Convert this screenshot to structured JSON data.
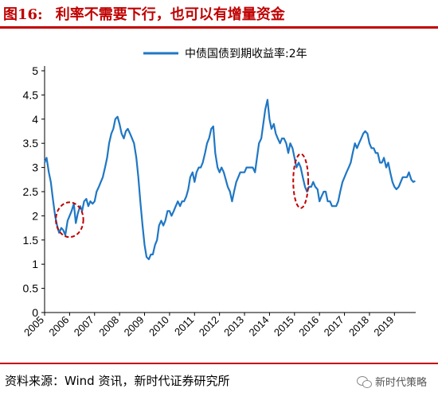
{
  "header": {
    "figure_label": "图16:",
    "title": "利率不需要下行，也可以有增量资金"
  },
  "footer": {
    "source": "资料来源：Wind 资讯，新时代证券研究所",
    "watermark": "新时代策略"
  },
  "icons": {
    "watermark_icon": "wechat-icon"
  },
  "colors": {
    "line": "#1f77c4",
    "highlight": "#c00000",
    "title": "#c00000"
  },
  "chart_data": {
    "type": "line",
    "title": "",
    "xlabel": "",
    "ylabel": "",
    "ylim": [
      0,
      5
    ],
    "yticks": [
      "0",
      "0.5",
      "1",
      "1.5",
      "2",
      "2.5",
      "3",
      "3.5",
      "4",
      "4.5",
      "5"
    ],
    "xticks": [
      "2005",
      "2006",
      "2007",
      "2008",
      "2009",
      "2010",
      "2011",
      "2012",
      "2013",
      "2014",
      "2015",
      "2016",
      "2017",
      "2018",
      "2019"
    ],
    "xlim": [
      2005.0,
      2019.85
    ],
    "grid": false,
    "legend": {
      "position": "top-center"
    },
    "series": [
      {
        "name": "中债国债到期收益率:2年",
        "color": "#1f77c4",
        "x": [
          2005.0,
          2005.08,
          2005.17,
          2005.25,
          2005.33,
          2005.42,
          2005.5,
          2005.58,
          2005.67,
          2005.75,
          2005.83,
          2005.92,
          2006.0,
          2006.08,
          2006.17,
          2006.25,
          2006.33,
          2006.42,
          2006.5,
          2006.58,
          2006.67,
          2006.75,
          2006.83,
          2006.92,
          2007.0,
          2007.08,
          2007.17,
          2007.25,
          2007.33,
          2007.42,
          2007.5,
          2007.58,
          2007.67,
          2007.75,
          2007.83,
          2007.92,
          2008.0,
          2008.08,
          2008.17,
          2008.25,
          2008.33,
          2008.42,
          2008.5,
          2008.58,
          2008.67,
          2008.75,
          2008.83,
          2008.92,
          2009.0,
          2009.08,
          2009.17,
          2009.25,
          2009.33,
          2009.42,
          2009.5,
          2009.58,
          2009.67,
          2009.75,
          2009.83,
          2009.92,
          2010.0,
          2010.08,
          2010.17,
          2010.25,
          2010.33,
          2010.42,
          2010.5,
          2010.58,
          2010.67,
          2010.75,
          2010.83,
          2010.92,
          2011.0,
          2011.08,
          2011.17,
          2011.25,
          2011.33,
          2011.42,
          2011.5,
          2011.58,
          2011.67,
          2011.75,
          2011.83,
          2011.92,
          2012.0,
          2012.08,
          2012.17,
          2012.25,
          2012.33,
          2012.42,
          2012.5,
          2012.58,
          2012.67,
          2012.75,
          2012.83,
          2012.92,
          2013.0,
          2013.08,
          2013.17,
          2013.25,
          2013.33,
          2013.42,
          2013.5,
          2013.58,
          2013.67,
          2013.75,
          2013.83,
          2013.92,
          2014.0,
          2014.08,
          2014.17,
          2014.25,
          2014.33,
          2014.42,
          2014.5,
          2014.58,
          2014.67,
          2014.75,
          2014.83,
          2014.92,
          2015.0,
          2015.08,
          2015.17,
          2015.25,
          2015.33,
          2015.42,
          2015.5,
          2015.58,
          2015.67,
          2015.75,
          2015.83,
          2015.92,
          2016.0,
          2016.08,
          2016.17,
          2016.25,
          2016.33,
          2016.42,
          2016.5,
          2016.58,
          2016.67,
          2016.75,
          2016.83,
          2016.92,
          2017.0,
          2017.08,
          2017.17,
          2017.25,
          2017.33,
          2017.42,
          2017.5,
          2017.58,
          2017.67,
          2017.75,
          2017.83,
          2017.92,
          2018.0,
          2018.08,
          2018.17,
          2018.25,
          2018.33,
          2018.42,
          2018.5,
          2018.58,
          2018.67,
          2018.75,
          2018.83,
          2018.92,
          2019.0,
          2019.08,
          2019.17,
          2019.25,
          2019.33,
          2019.42,
          2019.5,
          2019.58,
          2019.67,
          2019.75,
          2019.83
        ],
        "y": [
          3.1,
          3.2,
          2.9,
          2.7,
          2.35,
          2.0,
          1.8,
          1.65,
          1.75,
          1.7,
          1.6,
          1.9,
          2.0,
          2.1,
          2.25,
          1.85,
          2.05,
          2.2,
          2.1,
          2.3,
          2.35,
          2.2,
          2.3,
          2.25,
          2.3,
          2.5,
          2.6,
          2.7,
          2.8,
          3.0,
          3.2,
          3.5,
          3.7,
          3.8,
          4.0,
          4.05,
          3.9,
          3.7,
          3.6,
          3.75,
          3.8,
          3.7,
          3.6,
          3.5,
          3.2,
          2.8,
          2.3,
          1.8,
          1.4,
          1.15,
          1.1,
          1.2,
          1.2,
          1.4,
          1.5,
          1.8,
          1.9,
          1.8,
          1.9,
          2.1,
          2.1,
          2.0,
          2.1,
          2.2,
          2.3,
          2.2,
          2.3,
          2.3,
          2.4,
          2.55,
          2.8,
          2.9,
          2.7,
          2.9,
          3.0,
          3.0,
          3.1,
          3.3,
          3.5,
          3.6,
          3.8,
          3.85,
          3.3,
          3.0,
          2.9,
          3.0,
          2.9,
          2.75,
          2.6,
          2.5,
          2.3,
          2.5,
          2.7,
          2.8,
          2.9,
          2.9,
          2.9,
          3.0,
          3.0,
          3.0,
          3.0,
          2.9,
          3.2,
          3.5,
          3.6,
          3.9,
          4.2,
          4.4,
          4.0,
          3.8,
          3.9,
          3.7,
          3.6,
          3.5,
          3.6,
          3.6,
          3.5,
          3.3,
          3.5,
          3.4,
          3.2,
          3.0,
          3.1,
          3.0,
          2.8,
          2.6,
          2.5,
          2.6,
          2.6,
          2.7,
          2.6,
          2.55,
          2.3,
          2.4,
          2.5,
          2.5,
          2.3,
          2.3,
          2.2,
          2.2,
          2.2,
          2.3,
          2.5,
          2.7,
          2.8,
          2.9,
          3.0,
          3.1,
          3.3,
          3.5,
          3.4,
          3.5,
          3.6,
          3.7,
          3.75,
          3.7,
          3.5,
          3.4,
          3.4,
          3.3,
          3.3,
          3.1,
          3.1,
          3.2,
          3.0,
          3.1,
          2.9,
          2.7,
          2.6,
          2.55,
          2.6,
          2.7,
          2.8,
          2.8,
          2.8,
          2.9,
          2.75,
          2.7,
          2.72
        ]
      }
    ],
    "highlights": [
      {
        "name": "2006-low",
        "cx": 2006.0,
        "cy": 1.92,
        "rx": 0.55,
        "ry": 0.36
      },
      {
        "name": "2015-low",
        "cx": 2015.25,
        "cy": 2.72,
        "rx": 0.3,
        "ry": 0.56
      }
    ]
  }
}
